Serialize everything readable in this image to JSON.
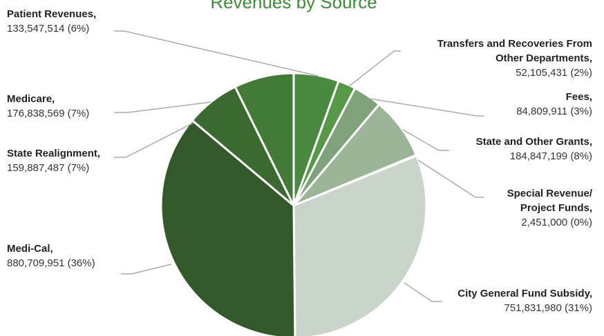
{
  "chart_data": {
    "type": "pie",
    "title": "Revenues by Source",
    "categories": [
      "Patient Revenues,",
      "Transfers and Recoveries From Other Departments,",
      "Fees,",
      "State and Other Grants,",
      "Special Revenue/ Project Funds,",
      "City General Fund Subsidy,",
      "Medi-Cal,",
      "State Realignment,",
      "Medicare,"
    ],
    "values": [
      133547514,
      52105431,
      84809911,
      184847199,
      2451000,
      751831980,
      880709951,
      159887487,
      176838569
    ],
    "value_labels": [
      "133,547,514 (6%)",
      "52,105,431 (2%)",
      "84,809,911 (3%)",
      "184,847,199 (8%)",
      "2,451,000 (0%)",
      "751,831,980 (31%)",
      "880,709,951 (36%)",
      "159,887,487 (7%)",
      "176,838,569 (7%)"
    ],
    "colors": [
      "#4a8a40",
      "#559848",
      "#7fa27a",
      "#9db597",
      "#b8c9b3",
      "#c9d5c9",
      "#33592a",
      "#3b6a31",
      "#437a38"
    ]
  }
}
